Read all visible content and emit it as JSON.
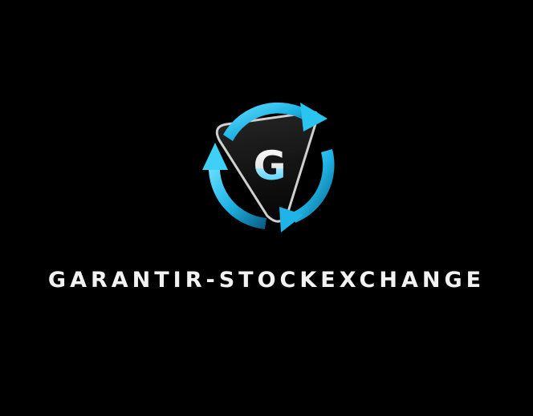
{
  "logo": {
    "letter": "G",
    "name": "GARANTIR-STOCKEXCHANGE",
    "icon": "circular-arrows-shield-logo-icon"
  },
  "colors": {
    "background": "#000000",
    "accent": "#29c4f0",
    "accent_dark": "#0b6f9a",
    "shield": "#141414",
    "shield_rim": "#cfcfcf",
    "text": "#f2f2f2"
  }
}
